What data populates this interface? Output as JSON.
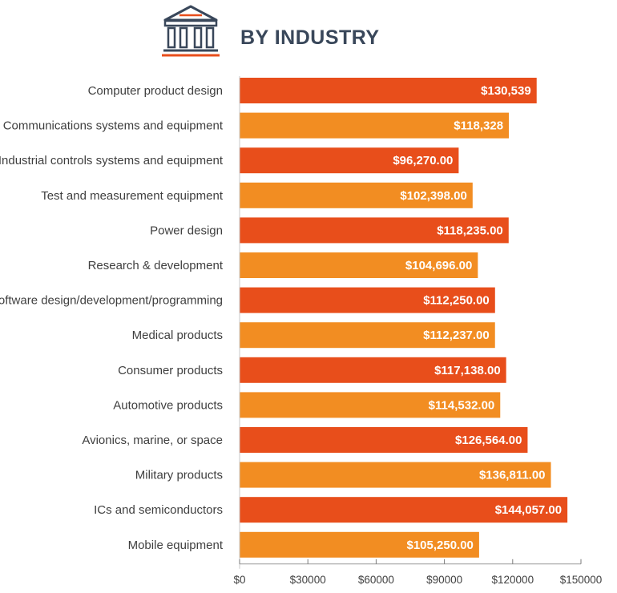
{
  "header": {
    "title": "BY INDUSTRY",
    "icon": "courthouse-icon",
    "icon_color": "#39475a",
    "icon_accent": "#e84e1b"
  },
  "chart_data": {
    "type": "bar",
    "orientation": "horizontal",
    "title": "BY INDUSTRY",
    "xlabel": "",
    "ylabel": "",
    "xlim": [
      0,
      150000
    ],
    "x_ticks": [
      0,
      30000,
      60000,
      90000,
      120000,
      150000
    ],
    "x_tick_labels": [
      "$0",
      "$30000",
      "$60000",
      "$90000",
      "$120000",
      "$150000"
    ],
    "colors": [
      "#e84e1b",
      "#f28d22"
    ],
    "categories": [
      "Computer product design",
      "Communications systems and equipment",
      "Industrial controls systems and equipment",
      "Test and measurement equipment",
      "Power design",
      "Research & development",
      "Software design/development/programming",
      "Medical products",
      "Consumer products",
      "Automotive products",
      "Avionics, marine, or space",
      "Military products",
      "ICs and semiconductors",
      "Mobile equipment"
    ],
    "values": [
      130539,
      118328,
      96270,
      102398,
      118235,
      104696,
      112250,
      112237,
      117138,
      114532,
      126564,
      136811,
      144057,
      105250
    ],
    "value_labels": [
      "$130,539",
      "$118,328",
      "$96,270.00",
      "$102,398.00",
      "$118,235.00",
      "$104,696.00",
      "$112,250.00",
      "$112,237.00",
      "$117,138.00",
      "$114,532.00",
      "$126,564.00",
      "$136,811.00",
      "$144,057.00",
      "$105,250.00"
    ]
  }
}
